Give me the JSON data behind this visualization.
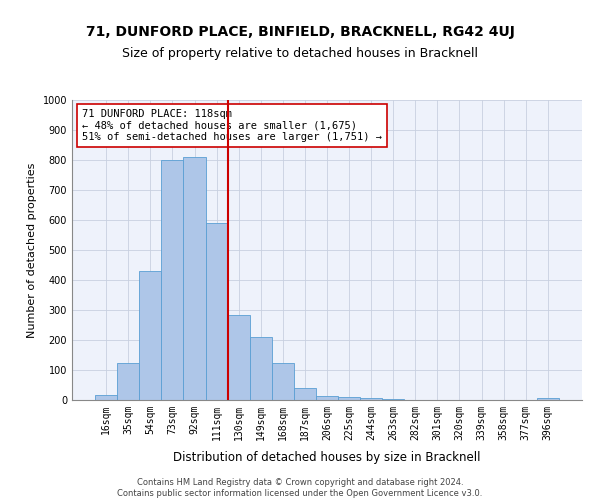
{
  "title": "71, DUNFORD PLACE, BINFIELD, BRACKNELL, RG42 4UJ",
  "subtitle": "Size of property relative to detached houses in Bracknell",
  "xlabel": "Distribution of detached houses by size in Bracknell",
  "ylabel": "Number of detached properties",
  "bar_labels": [
    "16sqm",
    "35sqm",
    "54sqm",
    "73sqm",
    "92sqm",
    "111sqm",
    "130sqm",
    "149sqm",
    "168sqm",
    "187sqm",
    "206sqm",
    "225sqm",
    "244sqm",
    "263sqm",
    "282sqm",
    "301sqm",
    "320sqm",
    "339sqm",
    "358sqm",
    "377sqm",
    "396sqm"
  ],
  "bar_values": [
    18,
    125,
    430,
    800,
    810,
    590,
    285,
    210,
    125,
    40,
    15,
    10,
    8,
    5,
    0,
    0,
    0,
    0,
    0,
    0,
    8
  ],
  "bar_color": "#aec6e8",
  "bar_edgecolor": "#5a9fd4",
  "vline_x_index": 5.5,
  "vline_color": "#cc0000",
  "vline_linewidth": 1.5,
  "annotation_text": "71 DUNFORD PLACE: 118sqm\n← 48% of detached houses are smaller (1,675)\n51% of semi-detached houses are larger (1,751) →",
  "annotation_box_color": "white",
  "annotation_box_edgecolor": "#cc0000",
  "ylim": [
    0,
    1000
  ],
  "yticks": [
    0,
    100,
    200,
    300,
    400,
    500,
    600,
    700,
    800,
    900,
    1000
  ],
  "grid_color": "#c8d0e0",
  "bg_color": "#eef2fb",
  "footnote": "Contains HM Land Registry data © Crown copyright and database right 2024.\nContains public sector information licensed under the Open Government Licence v3.0.",
  "title_fontsize": 10,
  "subtitle_fontsize": 9,
  "xlabel_fontsize": 8.5,
  "ylabel_fontsize": 8,
  "tick_fontsize": 7,
  "annotation_fontsize": 7.5,
  "footnote_fontsize": 6
}
